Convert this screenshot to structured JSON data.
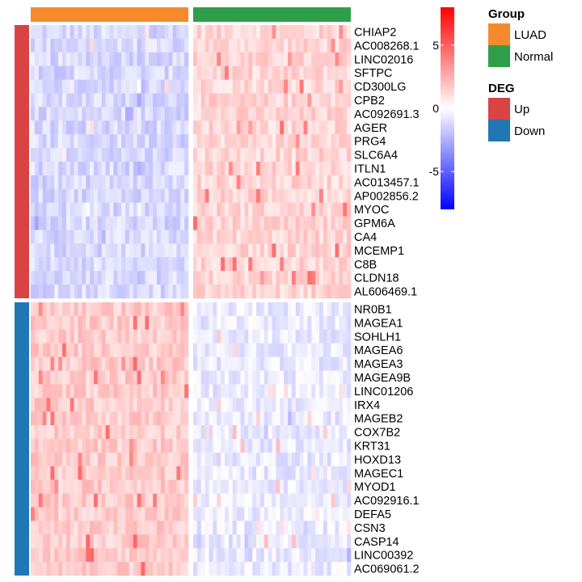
{
  "chart_data": {
    "type": "heatmap",
    "color_scale": {
      "min": -8,
      "max": 8,
      "low_color": "#0000ff",
      "mid_color": "#ffffff",
      "high_color": "#ff0000",
      "ticks": [
        5,
        0,
        -5
      ]
    },
    "groups": [
      {
        "name": "LUAD",
        "color": "#f58a2c",
        "n_samples": 40
      },
      {
        "name": "Normal",
        "color": "#2e9f48",
        "n_samples": 40
      }
    ],
    "deg_categories": [
      {
        "name": "Up",
        "color": "#d94343"
      },
      {
        "name": "Down",
        "color": "#1f77b4"
      }
    ],
    "legend": {
      "group_title": "Group",
      "deg_title": "DEG"
    },
    "row_blocks": [
      {
        "deg": "Up",
        "genes": [
          "CHIAP2",
          "AC008268.1",
          "LINC02016",
          "SFTPC",
          "CD300LG",
          "CPB2",
          "AC092691.3",
          "AGER",
          "PRG4",
          "SLC6A4",
          "ITLN1",
          "AC013457.1",
          "AP002856.2",
          "MYOC",
          "GPM6A",
          "CA4",
          "MCEMP1",
          "C8B",
          "CLDN18",
          "AL606469.1"
        ],
        "mean_luad": -1.2,
        "mean_normal": 1.3
      },
      {
        "deg": "Down",
        "genes": [
          "NR0B1",
          "MAGEA1",
          "SOHLH1",
          "MAGEA6",
          "MAGEA3",
          "MAGEA9B",
          "LINC01206",
          "IRX4",
          "MAGEB2",
          "COX7B2",
          "KRT31",
          "HOXD13",
          "MAGEC1",
          "MYOD1",
          "AC092916.1",
          "DEFA5",
          "CSN3",
          "CASP14",
          "LINC00392",
          "AC069061.2"
        ],
        "mean_luad": 1.6,
        "mean_normal": -0.6
      }
    ]
  }
}
